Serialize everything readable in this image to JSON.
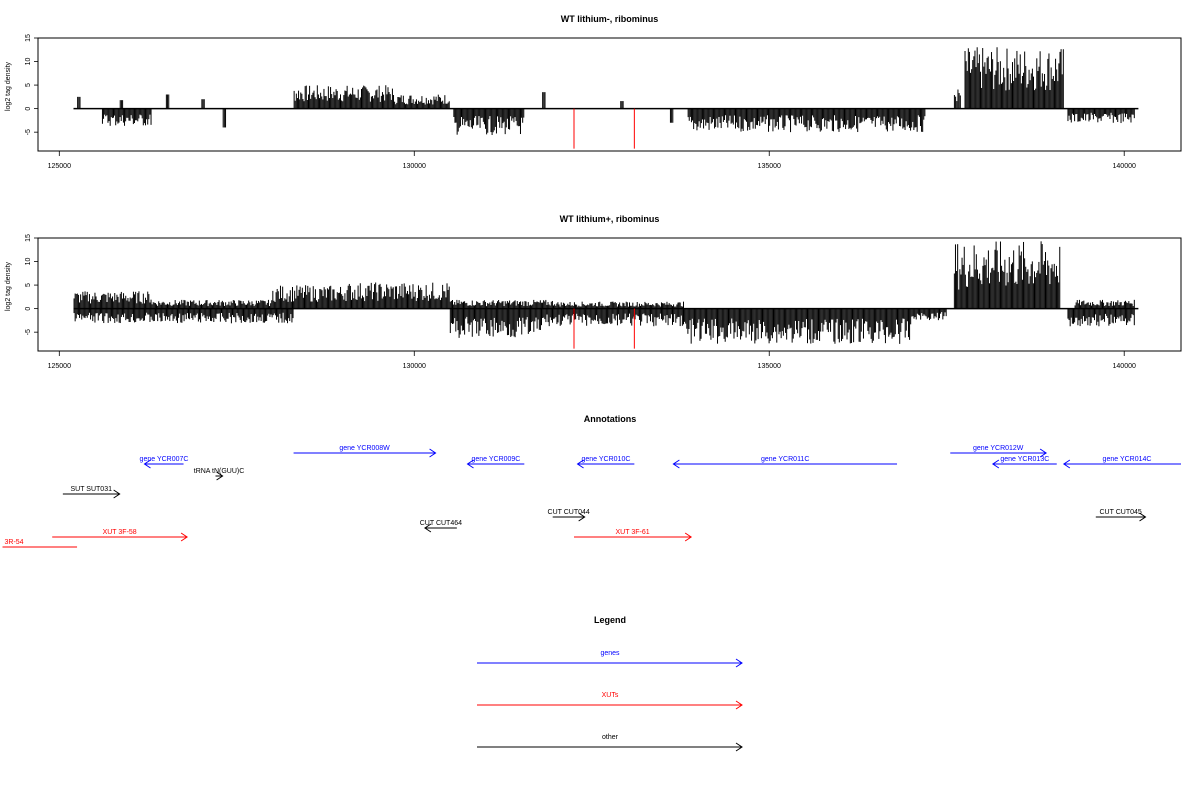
{
  "colors": {
    "genes": "#0000ff",
    "xuts": "#ff0000",
    "other": "#000000",
    "sample_line": "#ff0000"
  },
  "chart_data": [
    {
      "type": "bar",
      "title": "WT lithium-, ribominus",
      "xlabel": "",
      "ylabel": "log2 tag density",
      "xlim": [
        124700,
        140800
      ],
      "ylim": [
        -9,
        15
      ],
      "x_ticks": [
        125000,
        130000,
        135000,
        140000
      ],
      "y_ticks": [
        15,
        10,
        5,
        0,
        -5
      ],
      "grid": false,
      "baseline_range": [
        125200,
        140200
      ],
      "positive_blocks": [
        {
          "x0": 125250,
          "x1": 125300,
          "y": 2.5
        },
        {
          "x0": 125850,
          "x1": 125900,
          "y": 1.8
        },
        {
          "x0": 126500,
          "x1": 126550,
          "y": 3.0
        },
        {
          "x0": 127000,
          "x1": 127050,
          "y": 2.0
        },
        {
          "x0": 128300,
          "x1": 129700,
          "y": 4.0
        },
        {
          "x0": 129700,
          "x1": 130500,
          "y": 2.5
        },
        {
          "x0": 131800,
          "x1": 131850,
          "y": 3.5
        },
        {
          "x0": 132900,
          "x1": 132950,
          "y": 1.6
        },
        {
          "x0": 137600,
          "x1": 137700,
          "y": 3.5
        },
        {
          "x0": 137750,
          "x1": 139150,
          "y": 10.5
        }
      ],
      "negative_blocks": [
        {
          "x0": 125600,
          "x1": 126300,
          "y": -3.0
        },
        {
          "x0": 127300,
          "x1": 127350,
          "y": -4.0
        },
        {
          "x0": 130550,
          "x1": 131550,
          "y": -4.5
        },
        {
          "x0": 133600,
          "x1": 133650,
          "y": -3.0
        },
        {
          "x0": 133850,
          "x1": 137200,
          "y": -4.0
        },
        {
          "x0": 139200,
          "x1": 140150,
          "y": -2.5
        }
      ],
      "highlight_lines": [
        {
          "x": 132250,
          "y": -8.5
        },
        {
          "x": 133100,
          "y": -8.5
        }
      ]
    },
    {
      "type": "bar",
      "title": "WT lithium+, ribominus",
      "xlabel": "",
      "ylabel": "log2 tag density",
      "xlim": [
        124700,
        140800
      ],
      "ylim": [
        -9,
        15
      ],
      "x_ticks": [
        125000,
        130000,
        135000,
        140000
      ],
      "y_ticks": [
        15,
        10,
        5,
        0,
        -5
      ],
      "grid": false,
      "baseline_range": [
        125200,
        140200
      ],
      "positive_blocks": [
        {
          "x0": 125200,
          "x1": 126300,
          "y": 3.0
        },
        {
          "x0": 126300,
          "x1": 128000,
          "y": 1.5
        },
        {
          "x0": 128000,
          "x1": 129000,
          "y": 4.0
        },
        {
          "x0": 129000,
          "x1": 130500,
          "y": 4.5
        },
        {
          "x0": 130500,
          "x1": 132000,
          "y": 1.5
        },
        {
          "x0": 132000,
          "x1": 133800,
          "y": 1.2
        },
        {
          "x0": 137600,
          "x1": 139100,
          "y": 11.5
        },
        {
          "x0": 139300,
          "x1": 140150,
          "y": 1.5
        }
      ],
      "negative_blocks": [
        {
          "x0": 125200,
          "x1": 128300,
          "y": -2.5
        },
        {
          "x0": 130500,
          "x1": 131800,
          "y": -5.0
        },
        {
          "x0": 131800,
          "x1": 133800,
          "y": -3.0
        },
        {
          "x0": 133800,
          "x1": 137000,
          "y": -6.0
        },
        {
          "x0": 137000,
          "x1": 137500,
          "y": -2.0
        },
        {
          "x0": 139200,
          "x1": 140150,
          "y": -3.0
        }
      ],
      "highlight_lines": [
        {
          "x": 132250,
          "y": -8.5
        },
        {
          "x": 133100,
          "y": -8.5
        }
      ]
    }
  ],
  "annotations": {
    "title": "Annotations",
    "items": [
      {
        "label": "gene YCR007C",
        "kind": "genes",
        "x0": 126200,
        "x1": 126750,
        "row": 1,
        "dir": "left"
      },
      {
        "label": "gene YCR008W",
        "kind": "genes",
        "x0": 128300,
        "x1": 130300,
        "row": 0,
        "dir": "right"
      },
      {
        "label": "gene YCR009C",
        "kind": "genes",
        "x0": 130750,
        "x1": 131550,
        "row": 1,
        "dir": "left"
      },
      {
        "label": "gene YCR010C",
        "kind": "genes",
        "x0": 132300,
        "x1": 133100,
        "row": 1,
        "dir": "left"
      },
      {
        "label": "gene YCR011C",
        "kind": "genes",
        "x0": 133650,
        "x1": 136800,
        "row": 1,
        "dir": "left"
      },
      {
        "label": "gene YCR012W",
        "kind": "genes",
        "x0": 137550,
        "x1": 138900,
        "row": 0,
        "dir": "right"
      },
      {
        "label": "gene YCR013C",
        "kind": "genes",
        "x0": 138150,
        "x1": 139050,
        "row": 1,
        "dir": "left"
      },
      {
        "label": "gene YCR014C",
        "kind": "genes",
        "x0": 139150,
        "x1": 140800,
        "row": 1,
        "dir": "left"
      },
      {
        "label": "tRNA tN(GUU)C",
        "kind": "other",
        "x0": 127200,
        "x1": 127300,
        "row": 2,
        "dir": "right"
      },
      {
        "label": "SUT SUT031",
        "kind": "other",
        "x0": 125050,
        "x1": 125850,
        "row": 3,
        "dir": "right"
      },
      {
        "label": "CUT CUT044",
        "kind": "other",
        "x0": 131950,
        "x1": 132400,
        "row": 4,
        "dir": "right"
      },
      {
        "label": "CUT CUT045",
        "kind": "other",
        "x0": 139600,
        "x1": 140300,
        "row": 4,
        "dir": "right"
      },
      {
        "label": "CUT CUT464",
        "kind": "other",
        "x0": 130150,
        "x1": 130600,
        "row": 5,
        "dir": "left"
      },
      {
        "label": "XUT 3F-58",
        "kind": "xuts",
        "x0": 124900,
        "x1": 126800,
        "row": 6,
        "dir": "right"
      },
      {
        "label": "XUT 3F-61",
        "kind": "xuts",
        "x0": 132250,
        "x1": 133900,
        "row": 6,
        "dir": "right"
      },
      {
        "label": "3R-54",
        "kind": "xuts",
        "x0": 124200,
        "x1": 125250,
        "row": 7,
        "dir": "none"
      }
    ]
  },
  "legend": {
    "title": "Legend",
    "items": [
      {
        "label": "genes",
        "kind": "genes"
      },
      {
        "label": "XUTs",
        "kind": "xuts"
      },
      {
        "label": "other",
        "kind": "other"
      }
    ]
  }
}
